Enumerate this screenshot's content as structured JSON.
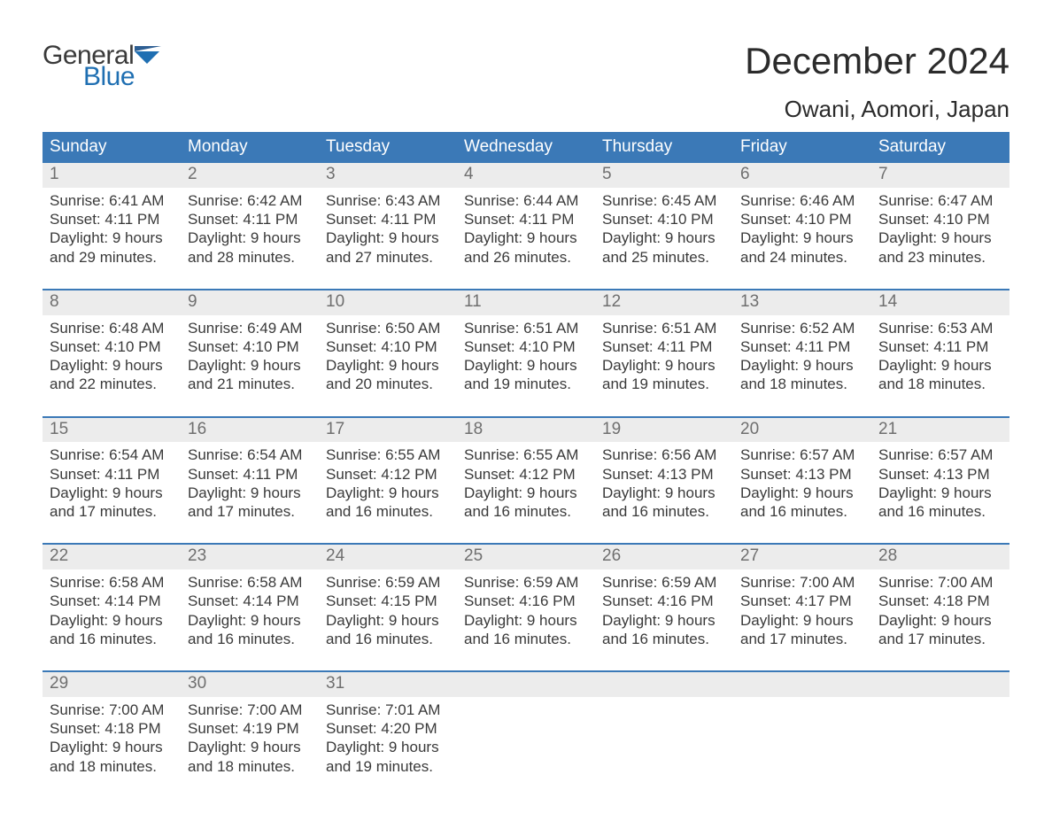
{
  "brand": {
    "word1": "General",
    "word2": "Blue",
    "text_color": "#3a3a3a",
    "accent_color": "#1f6fb2"
  },
  "header": {
    "month_title": "December 2024",
    "location": "Owani, Aomori, Japan"
  },
  "colors": {
    "header_bg": "#3b79b7",
    "header_text": "#ffffff",
    "daynum_bg": "#ececec",
    "daynum_text": "#6f6f6f",
    "body_text": "#3a3a3a",
    "week_divider": "#3b79b7",
    "page_bg": "#ffffff"
  },
  "day_headers": [
    "Sunday",
    "Monday",
    "Tuesday",
    "Wednesday",
    "Thursday",
    "Friday",
    "Saturday"
  ],
  "labels": {
    "sunrise": "Sunrise:",
    "sunset": "Sunset:",
    "daylight": "Daylight:",
    "and": "and",
    "minutes_suffix": "minutes."
  },
  "weeks": [
    [
      {
        "n": "1",
        "sunrise": "6:41 AM",
        "sunset": "4:11 PM",
        "dl_h": "9 hours",
        "dl_m": "29"
      },
      {
        "n": "2",
        "sunrise": "6:42 AM",
        "sunset": "4:11 PM",
        "dl_h": "9 hours",
        "dl_m": "28"
      },
      {
        "n": "3",
        "sunrise": "6:43 AM",
        "sunset": "4:11 PM",
        "dl_h": "9 hours",
        "dl_m": "27"
      },
      {
        "n": "4",
        "sunrise": "6:44 AM",
        "sunset": "4:11 PM",
        "dl_h": "9 hours",
        "dl_m": "26"
      },
      {
        "n": "5",
        "sunrise": "6:45 AM",
        "sunset": "4:10 PM",
        "dl_h": "9 hours",
        "dl_m": "25"
      },
      {
        "n": "6",
        "sunrise": "6:46 AM",
        "sunset": "4:10 PM",
        "dl_h": "9 hours",
        "dl_m": "24"
      },
      {
        "n": "7",
        "sunrise": "6:47 AM",
        "sunset": "4:10 PM",
        "dl_h": "9 hours",
        "dl_m": "23"
      }
    ],
    [
      {
        "n": "8",
        "sunrise": "6:48 AM",
        "sunset": "4:10 PM",
        "dl_h": "9 hours",
        "dl_m": "22"
      },
      {
        "n": "9",
        "sunrise": "6:49 AM",
        "sunset": "4:10 PM",
        "dl_h": "9 hours",
        "dl_m": "21"
      },
      {
        "n": "10",
        "sunrise": "6:50 AM",
        "sunset": "4:10 PM",
        "dl_h": "9 hours",
        "dl_m": "20"
      },
      {
        "n": "11",
        "sunrise": "6:51 AM",
        "sunset": "4:10 PM",
        "dl_h": "9 hours",
        "dl_m": "19"
      },
      {
        "n": "12",
        "sunrise": "6:51 AM",
        "sunset": "4:11 PM",
        "dl_h": "9 hours",
        "dl_m": "19"
      },
      {
        "n": "13",
        "sunrise": "6:52 AM",
        "sunset": "4:11 PM",
        "dl_h": "9 hours",
        "dl_m": "18"
      },
      {
        "n": "14",
        "sunrise": "6:53 AM",
        "sunset": "4:11 PM",
        "dl_h": "9 hours",
        "dl_m": "18"
      }
    ],
    [
      {
        "n": "15",
        "sunrise": "6:54 AM",
        "sunset": "4:11 PM",
        "dl_h": "9 hours",
        "dl_m": "17"
      },
      {
        "n": "16",
        "sunrise": "6:54 AM",
        "sunset": "4:11 PM",
        "dl_h": "9 hours",
        "dl_m": "17"
      },
      {
        "n": "17",
        "sunrise": "6:55 AM",
        "sunset": "4:12 PM",
        "dl_h": "9 hours",
        "dl_m": "16"
      },
      {
        "n": "18",
        "sunrise": "6:55 AM",
        "sunset": "4:12 PM",
        "dl_h": "9 hours",
        "dl_m": "16"
      },
      {
        "n": "19",
        "sunrise": "6:56 AM",
        "sunset": "4:13 PM",
        "dl_h": "9 hours",
        "dl_m": "16"
      },
      {
        "n": "20",
        "sunrise": "6:57 AM",
        "sunset": "4:13 PM",
        "dl_h": "9 hours",
        "dl_m": "16"
      },
      {
        "n": "21",
        "sunrise": "6:57 AM",
        "sunset": "4:13 PM",
        "dl_h": "9 hours",
        "dl_m": "16"
      }
    ],
    [
      {
        "n": "22",
        "sunrise": "6:58 AM",
        "sunset": "4:14 PM",
        "dl_h": "9 hours",
        "dl_m": "16"
      },
      {
        "n": "23",
        "sunrise": "6:58 AM",
        "sunset": "4:14 PM",
        "dl_h": "9 hours",
        "dl_m": "16"
      },
      {
        "n": "24",
        "sunrise": "6:59 AM",
        "sunset": "4:15 PM",
        "dl_h": "9 hours",
        "dl_m": "16"
      },
      {
        "n": "25",
        "sunrise": "6:59 AM",
        "sunset": "4:16 PM",
        "dl_h": "9 hours",
        "dl_m": "16"
      },
      {
        "n": "26",
        "sunrise": "6:59 AM",
        "sunset": "4:16 PM",
        "dl_h": "9 hours",
        "dl_m": "16"
      },
      {
        "n": "27",
        "sunrise": "7:00 AM",
        "sunset": "4:17 PM",
        "dl_h": "9 hours",
        "dl_m": "17"
      },
      {
        "n": "28",
        "sunrise": "7:00 AM",
        "sunset": "4:18 PM",
        "dl_h": "9 hours",
        "dl_m": "17"
      }
    ],
    [
      {
        "n": "29",
        "sunrise": "7:00 AM",
        "sunset": "4:18 PM",
        "dl_h": "9 hours",
        "dl_m": "18"
      },
      {
        "n": "30",
        "sunrise": "7:00 AM",
        "sunset": "4:19 PM",
        "dl_h": "9 hours",
        "dl_m": "18"
      },
      {
        "n": "31",
        "sunrise": "7:01 AM",
        "sunset": "4:20 PM",
        "dl_h": "9 hours",
        "dl_m": "19"
      },
      null,
      null,
      null,
      null
    ]
  ]
}
